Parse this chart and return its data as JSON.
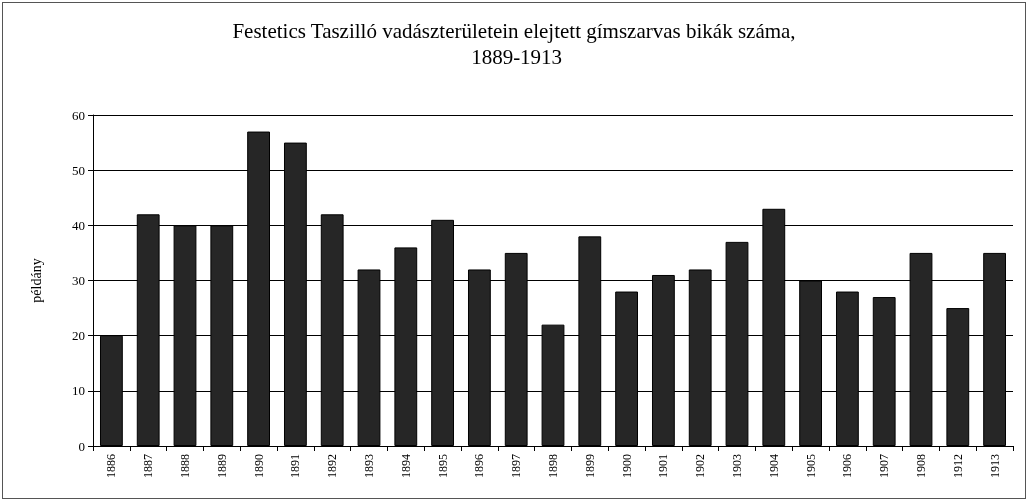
{
  "chart_data": {
    "type": "bar",
    "title": "Festetics Taszilló vadászterületein elejtett gímszarvas bikák száma, 1889-1913",
    "ylabel": "példány",
    "categories": [
      "1886",
      "1887",
      "1888",
      "1889",
      "1890",
      "1891",
      "1892",
      "1893",
      "1894",
      "1895",
      "1896",
      "1897",
      "1898",
      "1899",
      "1900",
      "1901",
      "1902",
      "1903",
      "1904",
      "1905",
      "1906",
      "1907",
      "1908",
      "1912",
      "1913"
    ],
    "values": [
      20,
      42,
      40,
      40,
      57,
      55,
      42,
      32,
      36,
      41,
      32,
      35,
      22,
      38,
      28,
      31,
      32,
      37,
      43,
      30,
      28,
      27,
      35,
      25,
      35
    ],
    "color": "#262626",
    "ylim": [
      0,
      60
    ],
    "yticks": [
      0,
      10,
      20,
      30,
      40,
      50,
      60
    ],
    "grid": "y"
  }
}
